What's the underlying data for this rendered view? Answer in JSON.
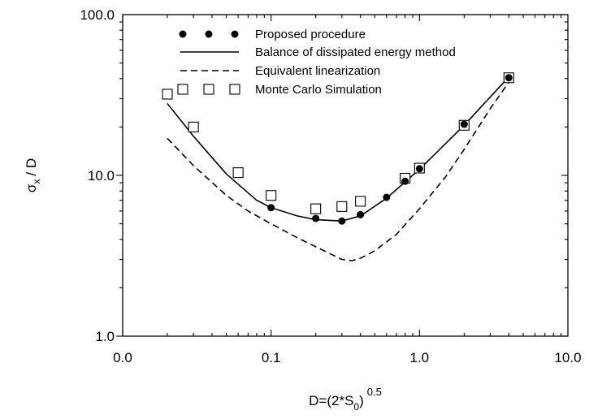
{
  "chart_data": {
    "type": "scatter",
    "title": "",
    "xlabel": {
      "prefix": "D=(2*S",
      "sub": "0",
      "suffix": ")",
      "sup": "0.5"
    },
    "ylabel": {
      "prefix": "σ",
      "sub": "x",
      "suffix": "/ D"
    },
    "xscale": "log",
    "yscale": "log",
    "xlim": [
      0.01,
      10
    ],
    "ylim": [
      1,
      100
    ],
    "xticks": [
      {
        "value": 0.01,
        "label": "0.0"
      },
      {
        "value": 0.1,
        "label": "0.1"
      },
      {
        "value": 1,
        "label": "1.0"
      },
      {
        "value": 10,
        "label": "10.0"
      }
    ],
    "yticks": [
      {
        "value": 1,
        "label": "1.0"
      },
      {
        "value": 10,
        "label": "10.0"
      },
      {
        "value": 100,
        "label": "100.0"
      }
    ],
    "grid": false,
    "legend_position": "top-left",
    "series": [
      {
        "name": "Proposed procedure",
        "style": "filled-circle",
        "x": [
          0.1,
          0.2,
          0.3,
          0.4,
          0.6,
          0.8,
          1.0,
          2.0,
          4.0
        ],
        "y": [
          6.3,
          5.4,
          5.2,
          5.7,
          7.3,
          9.2,
          11.0,
          20.8,
          40.5
        ]
      },
      {
        "name": "Balance of dissipated energy method",
        "style": "solid-line",
        "x": [
          0.02,
          0.03,
          0.05,
          0.08,
          0.1,
          0.15,
          0.2,
          0.3,
          0.4,
          0.6,
          0.8,
          1.0,
          2.0,
          4.0
        ],
        "y": [
          28.0,
          17.5,
          10.2,
          7.0,
          6.3,
          5.6,
          5.3,
          5.2,
          5.6,
          7.2,
          9.1,
          10.9,
          20.5,
          41.0
        ]
      },
      {
        "name": "Equivalent linearization",
        "style": "dashed-line",
        "x": [
          0.02,
          0.03,
          0.05,
          0.07,
          0.1,
          0.15,
          0.2,
          0.3,
          0.35,
          0.4,
          0.5,
          0.7,
          1.0,
          1.5,
          2.0,
          3.0,
          4.0
        ],
        "y": [
          17.0,
          11.5,
          7.5,
          6.0,
          5.0,
          4.1,
          3.6,
          3.0,
          2.95,
          3.05,
          3.4,
          4.3,
          6.2,
          9.8,
          14.5,
          26.0,
          38.0
        ]
      },
      {
        "name": "Monte Carlo Simulation",
        "style": "open-square",
        "x": [
          0.02,
          0.03,
          0.06,
          0.1,
          0.2,
          0.3,
          0.4,
          0.8,
          1.0,
          2.0,
          4.0
        ],
        "y": [
          32.0,
          20.0,
          10.4,
          7.5,
          6.2,
          6.4,
          6.9,
          9.6,
          11.1,
          20.5,
          40.5
        ]
      }
    ]
  }
}
